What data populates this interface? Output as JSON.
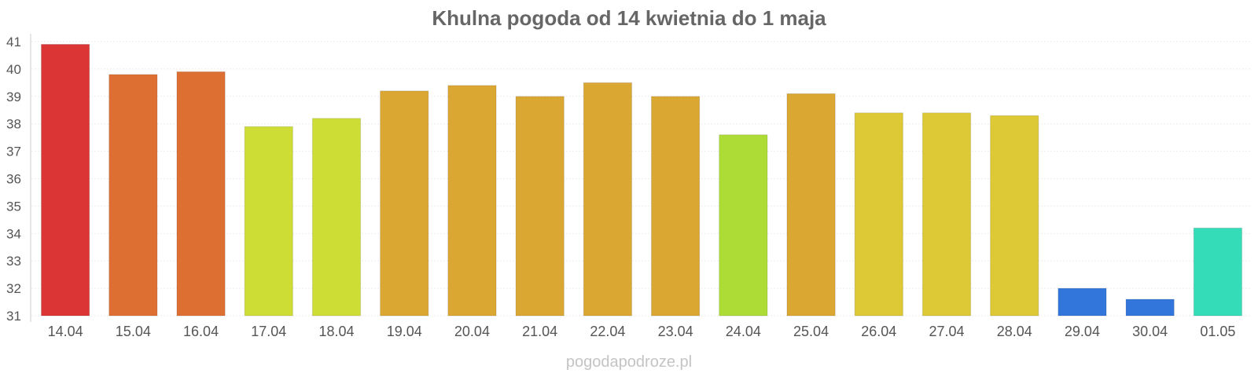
{
  "chart_data": {
    "type": "bar",
    "title": "Khulna pogoda od 14 kwietnia do 1 maja",
    "xlabel": "",
    "ylabel": "",
    "ylim": [
      31,
      41
    ],
    "yticks": [
      "31",
      "32",
      "33",
      "34",
      "35",
      "36",
      "37",
      "38",
      "39",
      "40",
      "41"
    ],
    "grid": true,
    "categories": [
      "14.04",
      "15.04",
      "16.04",
      "17.04",
      "18.04",
      "19.04",
      "20.04",
      "21.04",
      "22.04",
      "23.04",
      "24.04",
      "25.04",
      "26.04",
      "27.04",
      "28.04",
      "29.04",
      "30.04",
      "01.05"
    ],
    "values": [
      40.9,
      39.8,
      39.9,
      37.9,
      38.2,
      39.2,
      39.4,
      39.0,
      39.5,
      39.0,
      37.6,
      39.1,
      38.4,
      38.4,
      38.3,
      32.0,
      31.6,
      34.2
    ],
    "colors": [
      "#db3535",
      "#dd6f33",
      "#dd6f33",
      "#cedd35",
      "#cedd35",
      "#dba733",
      "#dba733",
      "#dba733",
      "#dba733",
      "#dba733",
      "#acdc35",
      "#dba733",
      "#dcc935",
      "#dcc935",
      "#dcc935",
      "#3376db",
      "#3376db",
      "#35dcb8"
    ]
  },
  "watermark": "pogodapodroze.pl"
}
